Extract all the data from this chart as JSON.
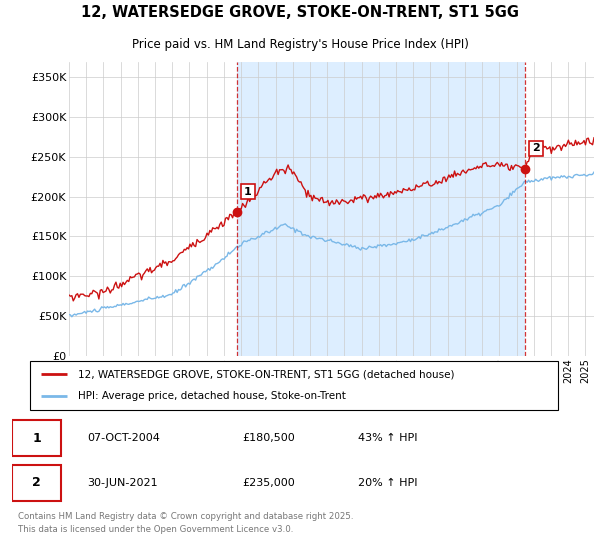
{
  "title": "12, WATERSEDGE GROVE, STOKE-ON-TRENT, ST1 5GG",
  "subtitle": "Price paid vs. HM Land Registry's House Price Index (HPI)",
  "ylabel_ticks": [
    "£0",
    "£50K",
    "£100K",
    "£150K",
    "£200K",
    "£250K",
    "£300K",
    "£350K"
  ],
  "ytick_values": [
    0,
    50000,
    100000,
    150000,
    200000,
    250000,
    300000,
    350000
  ],
  "ylim": [
    0,
    370000
  ],
  "xlim_start": 1995.0,
  "xlim_end": 2025.5,
  "sale1_date": 2004.77,
  "sale1_price": 180500,
  "sale1_label": "1",
  "sale2_date": 2021.5,
  "sale2_price": 235000,
  "sale2_label": "2",
  "legend_line1": "12, WATERSEDGE GROVE, STOKE-ON-TRENT, ST1 5GG (detached house)",
  "legend_line2": "HPI: Average price, detached house, Stoke-on-Trent",
  "table_row1": [
    "1",
    "07-OCT-2004",
    "£180,500",
    "43% ↑ HPI"
  ],
  "table_row2": [
    "2",
    "30-JUN-2021",
    "£235,000",
    "20% ↑ HPI"
  ],
  "footnote": "Contains HM Land Registry data © Crown copyright and database right 2025.\nThis data is licensed under the Open Government Licence v3.0.",
  "hpi_color": "#7ab8e8",
  "price_color": "#cc1111",
  "vline_color": "#cc1111",
  "shading_color": "#ddeeff",
  "background_color": "#ffffff",
  "grid_color": "#cccccc"
}
